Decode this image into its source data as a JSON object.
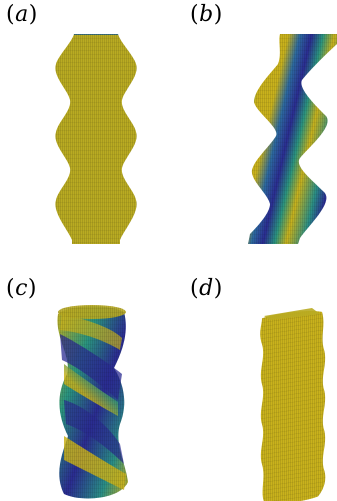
{
  "panels": {
    "a": {
      "letter": "a",
      "open": "(",
      "close": ")"
    },
    "b": {
      "letter": "b",
      "open": "(",
      "close": ")"
    },
    "c": {
      "letter": "c",
      "open": "(",
      "close": ")"
    },
    "d": {
      "letter": "d",
      "open": "(",
      "close": ")"
    }
  },
  "colors": {
    "yellow": "#c9b21c",
    "blue": "#2b2c92",
    "teal": "#1f8a8a",
    "mesh": "#111111"
  }
}
